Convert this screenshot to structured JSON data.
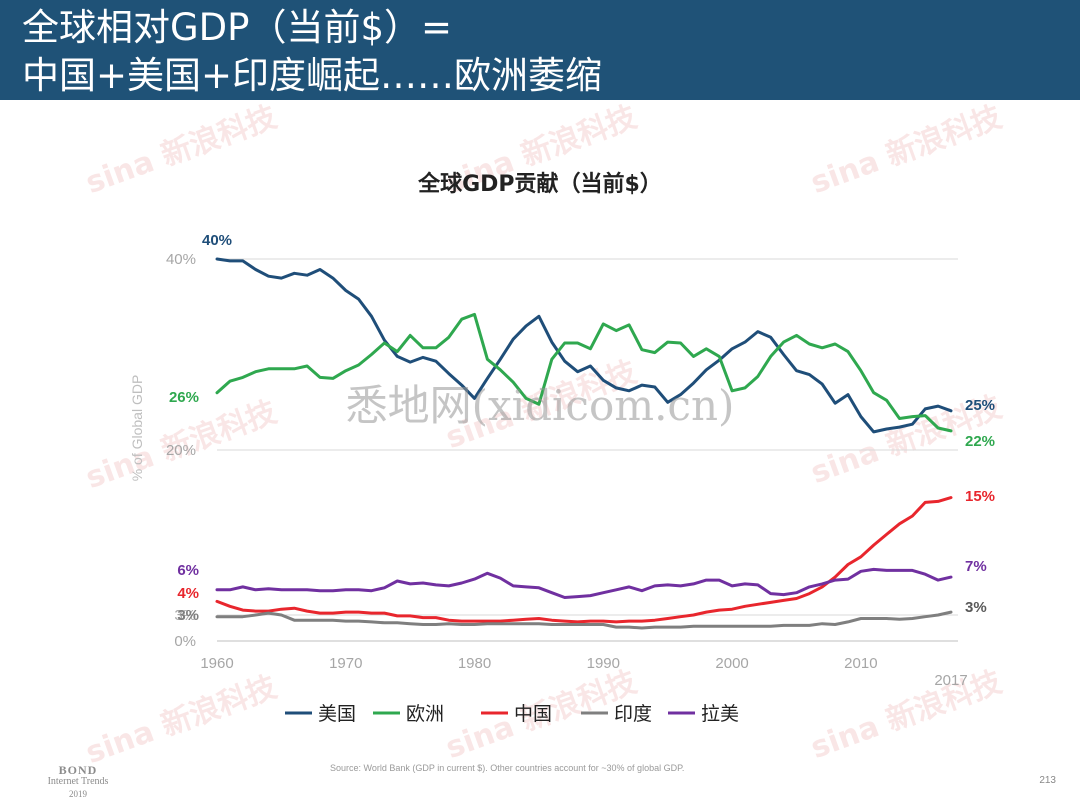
{
  "header": {
    "line1": "全球相对GDP（当前$）=",
    "line2": "中国+美国+印度崛起……欧洲萎缩"
  },
  "watermarks": {
    "sina": "sina 新浪科技",
    "center": "悉地网(xidicom.cn)"
  },
  "footer": {
    "source": "Source: World Bank (GDP in current $). Other countries account for ~30% of global GDP.",
    "page": "213",
    "brand_line1": "BOND",
    "brand_line2": "Internet Trends",
    "brand_line3": "2019"
  },
  "chart_data": {
    "type": "line",
    "title": "全球GDP贡献（当前$）",
    "ylabel": "% of Global GDP",
    "xlabel": "",
    "x_ticks": [
      "1960",
      "1970",
      "1980",
      "1990",
      "2000",
      "2010",
      "2017"
    ],
    "y_ticks": [
      "0%",
      "3%",
      "20%",
      "40%"
    ],
    "xlim": [
      1960,
      2017
    ],
    "grid": true,
    "legend_position": "bottom",
    "x": [
      1960,
      1961,
      1962,
      1963,
      1964,
      1965,
      1966,
      1967,
      1968,
      1969,
      1970,
      1971,
      1972,
      1973,
      1974,
      1975,
      1976,
      1977,
      1978,
      1979,
      1980,
      1981,
      1982,
      1983,
      1984,
      1985,
      1986,
      1987,
      1988,
      1989,
      1990,
      1991,
      1992,
      1993,
      1994,
      1995,
      1996,
      1997,
      1998,
      1999,
      2000,
      2001,
      2002,
      2003,
      2004,
      2005,
      2006,
      2007,
      2008,
      2009,
      2010,
      2011,
      2012,
      2013,
      2014,
      2015,
      2016,
      2017
    ],
    "series": [
      {
        "name": "美国",
        "color": "#1f4e79",
        "start_label": "40%",
        "end_label": "25%",
        "values": [
          40.0,
          39.8,
          39.8,
          38.9,
          38.2,
          38.0,
          38.5,
          38.3,
          38.9,
          38.0,
          36.7,
          35.8,
          34.0,
          31.5,
          29.8,
          29.2,
          29.7,
          29.3,
          28.0,
          26.8,
          25.4,
          27.5,
          29.5,
          31.6,
          33.0,
          34.0,
          31.3,
          29.3,
          28.2,
          28.8,
          27.3,
          26.5,
          26.2,
          26.8,
          26.6,
          25.0,
          25.8,
          27.0,
          28.4,
          29.4,
          30.6,
          31.3,
          32.4,
          31.8,
          30.0,
          28.3,
          27.9,
          26.9,
          24.9,
          25.8,
          23.5,
          21.9,
          22.2,
          22.4,
          22.7,
          24.3,
          24.6,
          24.1
        ]
      },
      {
        "name": "欧洲",
        "color": "#2fa84f",
        "start_label": "26%",
        "end_label": "22%",
        "values": [
          26.0,
          27.2,
          27.6,
          28.2,
          28.5,
          28.5,
          28.5,
          28.8,
          27.6,
          27.5,
          28.3,
          28.9,
          30.0,
          31.2,
          30.3,
          32.0,
          30.7,
          30.7,
          31.8,
          33.7,
          34.2,
          29.5,
          28.4,
          27.1,
          25.4,
          24.8,
          29.5,
          31.2,
          31.2,
          30.6,
          33.2,
          32.5,
          33.1,
          30.5,
          30.2,
          31.3,
          31.2,
          29.8,
          30.6,
          29.8,
          26.2,
          26.5,
          27.7,
          29.8,
          31.3,
          32.0,
          31.1,
          30.7,
          31.1,
          30.3,
          28.3,
          26.0,
          25.2,
          23.3,
          23.5,
          23.6,
          22.3,
          22.0
        ]
      },
      {
        "name": "中国",
        "color": "#e8262d",
        "start_label": "4%",
        "end_label": "15%",
        "values": [
          4.4,
          3.9,
          3.5,
          3.4,
          3.4,
          3.6,
          3.7,
          3.4,
          3.2,
          3.2,
          3.3,
          3.3,
          3.2,
          3.2,
          2.9,
          2.9,
          2.7,
          2.7,
          2.4,
          2.3,
          2.3,
          2.3,
          2.3,
          2.4,
          2.5,
          2.6,
          2.4,
          2.3,
          2.2,
          2.3,
          2.3,
          2.2,
          2.3,
          2.3,
          2.4,
          2.6,
          2.8,
          3.0,
          3.3,
          3.5,
          3.6,
          3.9,
          4.1,
          4.3,
          4.5,
          4.7,
          5.2,
          5.9,
          6.9,
          8.2,
          9.0,
          10.2,
          11.3,
          12.4,
          13.2,
          14.6,
          14.7,
          15.1
        ]
      },
      {
        "name": "印度",
        "color": "#7f7f7f",
        "start_label": "3%",
        "end_label": "3%",
        "values": [
          2.8,
          2.8,
          2.8,
          3.0,
          3.2,
          3.0,
          2.4,
          2.4,
          2.4,
          2.4,
          2.3,
          2.3,
          2.2,
          2.1,
          2.1,
          2.0,
          1.9,
          1.9,
          2.0,
          1.9,
          1.9,
          2.0,
          2.0,
          2.0,
          2.0,
          2.0,
          1.9,
          1.9,
          1.9,
          1.9,
          1.9,
          1.6,
          1.6,
          1.5,
          1.6,
          1.6,
          1.6,
          1.7,
          1.7,
          1.7,
          1.7,
          1.7,
          1.7,
          1.7,
          1.8,
          1.8,
          1.8,
          2.0,
          1.9,
          2.2,
          2.6,
          2.6,
          2.6,
          2.5,
          2.6,
          2.8,
          3.0,
          3.3
        ]
      },
      {
        "name": "拉美",
        "color": "#7030a0",
        "start_label": "6%",
        "end_label": "7%",
        "values": [
          5.6,
          5.6,
          5.9,
          5.6,
          5.7,
          5.6,
          5.6,
          5.6,
          5.5,
          5.5,
          5.6,
          5.6,
          5.5,
          5.8,
          6.5,
          6.2,
          6.3,
          6.1,
          6.0,
          6.3,
          6.7,
          7.3,
          6.8,
          6.0,
          5.9,
          5.8,
          5.3,
          4.8,
          4.9,
          5.0,
          5.3,
          5.6,
          5.9,
          5.5,
          6.0,
          6.1,
          6.0,
          6.2,
          6.6,
          6.6,
          6.0,
          6.2,
          6.1,
          5.2,
          5.1,
          5.3,
          5.9,
          6.2,
          6.6,
          6.7,
          7.5,
          7.7,
          7.6,
          7.6,
          7.6,
          7.2,
          6.6,
          6.9
        ]
      }
    ]
  }
}
